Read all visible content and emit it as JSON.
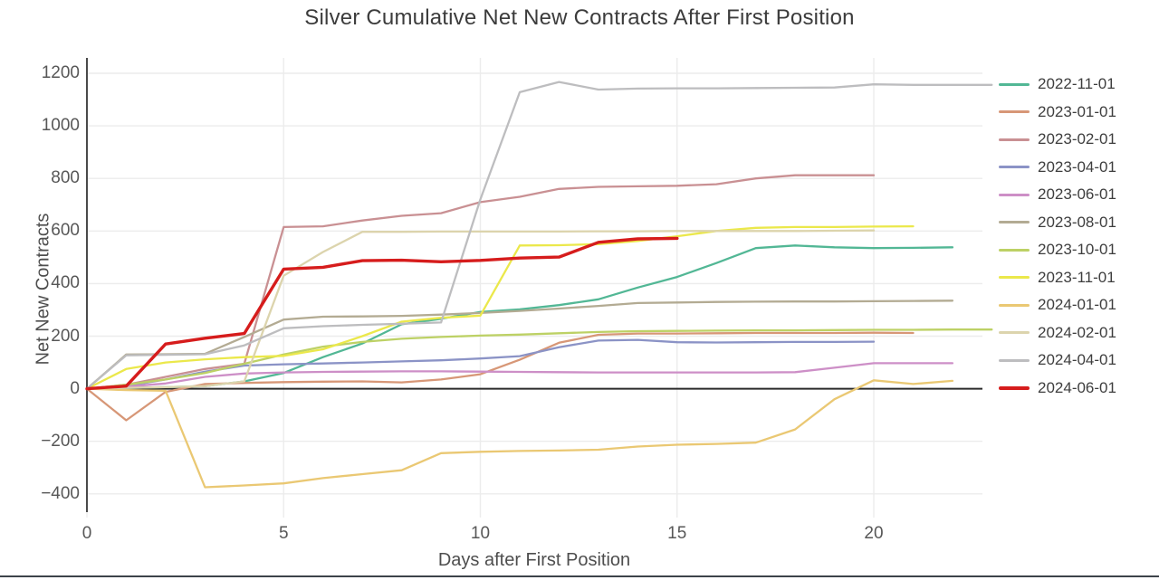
{
  "title": "Silver Cumulative Net New Contracts After First Position",
  "x_axis": {
    "label": "Days after First Position",
    "ticks": [
      0,
      5,
      10,
      15,
      20
    ]
  },
  "y_axis": {
    "label": "Net New Contracts",
    "ticks": [
      -400,
      -200,
      0,
      200,
      400,
      600,
      800,
      1000,
      1200
    ]
  },
  "chart_data": {
    "type": "line",
    "title": "Silver Cumulative Net New Contracts After First Position",
    "xlabel": "Days after First Position",
    "ylabel": "Net New Contracts",
    "x_range": [
      0,
      23.3
    ],
    "y_range": [
      -490,
      1245
    ],
    "grid": true,
    "legend_position": "right",
    "zero_line": true,
    "grid_color": "#ececec",
    "zero_line_color": "#2b2b2b",
    "axis_line_color": "#4a4a4a",
    "series": [
      {
        "name": "2022-11-01",
        "color": "#52b795",
        "width": 2.3,
        "values": [
          0,
          3,
          6,
          10,
          28,
          60,
          120,
          172,
          245,
          266,
          292,
          302,
          318,
          340,
          385,
          425,
          478,
          535,
          545,
          538,
          535,
          536,
          538
        ]
      },
      {
        "name": "2023-01-01",
        "color": "#d79777",
        "width": 2.3,
        "values": [
          0,
          -120,
          -12,
          18,
          22,
          25,
          27,
          28,
          24,
          35,
          55,
          110,
          175,
          205,
          210,
          210,
          211,
          212,
          212,
          212,
          213,
          212
        ]
      },
      {
        "name": "2023-02-01",
        "color": "#c99093",
        "width": 2.3,
        "values": [
          0,
          15,
          45,
          75,
          95,
          615,
          618,
          640,
          658,
          668,
          710,
          730,
          760,
          768,
          770,
          772,
          778,
          800,
          812,
          812,
          812
        ]
      },
      {
        "name": "2023-04-01",
        "color": "#8b93c6",
        "width": 2.3,
        "values": [
          0,
          10,
          35,
          65,
          88,
          93,
          96,
          100,
          104,
          108,
          115,
          124,
          158,
          183,
          186,
          177,
          176,
          177,
          178,
          178,
          179
        ]
      },
      {
        "name": "2023-06-01",
        "color": "#cd8fc7",
        "width": 2.3,
        "values": [
          0,
          8,
          20,
          45,
          58,
          62,
          64,
          65,
          66,
          66,
          65,
          64,
          63,
          62,
          62,
          62,
          62,
          62,
          63,
          80,
          97,
          97,
          97
        ]
      },
      {
        "name": "2023-08-01",
        "color": "#b3ab93",
        "width": 2.3,
        "values": [
          0,
          130,
          131,
          133,
          197,
          263,
          274,
          275,
          277,
          282,
          288,
          296,
          305,
          315,
          326,
          328,
          330,
          331,
          332,
          332,
          333,
          334,
          335
        ]
      },
      {
        "name": "2023-10-01",
        "color": "#bdd165",
        "width": 2.3,
        "values": [
          0,
          15,
          35,
          60,
          95,
          130,
          160,
          178,
          190,
          197,
          202,
          206,
          211,
          216,
          219,
          220,
          221,
          222,
          222,
          223,
          224,
          224,
          225,
          225
        ]
      },
      {
        "name": "2023-11-01",
        "color": "#ebe84b",
        "width": 2.3,
        "values": [
          0,
          75,
          100,
          112,
          120,
          125,
          150,
          200,
          255,
          270,
          278,
          545,
          546,
          550,
          562,
          580,
          600,
          612,
          615,
          615,
          617,
          618
        ]
      },
      {
        "name": "2024-01-01",
        "color": "#eac873",
        "width": 2.3,
        "values": [
          0,
          -5,
          -8,
          -375,
          -368,
          -360,
          -340,
          -325,
          -310,
          -245,
          -240,
          -237,
          -235,
          -232,
          -220,
          -213,
          -210,
          -205,
          -155,
          -40,
          32,
          18,
          30
        ]
      },
      {
        "name": "2024-02-01",
        "color": "#dcd4ad",
        "width": 2.3,
        "values": [
          0,
          3,
          6,
          10,
          28,
          430,
          520,
          597,
          597,
          598,
          598,
          598,
          598,
          599,
          599,
          600,
          600,
          600,
          600,
          601,
          602
        ]
      },
      {
        "name": "2024-04-01",
        "color": "#bdbdbf",
        "width": 2.3,
        "values": [
          0,
          127,
          129,
          131,
          165,
          230,
          238,
          243,
          247,
          252,
          720,
          1128,
          1167,
          1138,
          1142,
          1143,
          1143,
          1144,
          1145,
          1146,
          1158,
          1156,
          1156,
          1156
        ]
      },
      {
        "name": "2024-06-01",
        "color": "#d61c1c",
        "width": 3.4,
        "values": [
          0,
          10,
          170,
          192,
          210,
          455,
          462,
          487,
          489,
          483,
          488,
          497,
          501,
          557,
          570,
          572
        ]
      }
    ]
  }
}
